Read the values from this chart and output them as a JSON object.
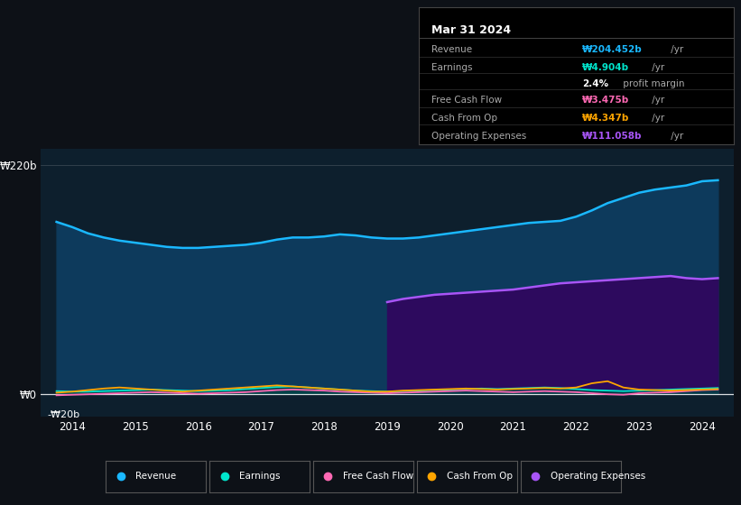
{
  "bg_color": "#0d1117",
  "plot_bg_color": "#0d1f2d",
  "x_years": [
    2013.75,
    2014.0,
    2014.25,
    2014.5,
    2014.75,
    2015.0,
    2015.25,
    2015.5,
    2015.75,
    2016.0,
    2016.25,
    2016.5,
    2016.75,
    2017.0,
    2017.25,
    2017.5,
    2017.75,
    2018.0,
    2018.25,
    2018.5,
    2018.75,
    2019.0,
    2019.25,
    2019.5,
    2019.75,
    2020.0,
    2020.25,
    2020.5,
    2020.75,
    2021.0,
    2021.25,
    2021.5,
    2021.75,
    2022.0,
    2022.25,
    2022.5,
    2022.75,
    2023.0,
    2023.25,
    2023.5,
    2023.75,
    2024.0,
    2024.25
  ],
  "revenue": [
    165,
    160,
    154,
    150,
    147,
    145,
    143,
    141,
    140,
    140,
    141,
    142,
    143,
    145,
    148,
    150,
    150,
    151,
    153,
    152,
    150,
    149,
    149,
    150,
    152,
    154,
    156,
    158,
    160,
    162,
    164,
    165,
    166,
    170,
    176,
    183,
    188,
    193,
    196,
    198,
    200,
    204,
    205
  ],
  "earnings": [
    2.5,
    2.0,
    2.0,
    2.5,
    3.0,
    3.5,
    4.0,
    3.5,
    3.0,
    2.5,
    3.0,
    3.5,
    4.5,
    5.5,
    6.5,
    7.0,
    6.0,
    5.0,
    4.0,
    3.0,
    2.5,
    2.0,
    2.5,
    3.0,
    3.5,
    4.0,
    4.5,
    5.0,
    4.5,
    5.0,
    5.5,
    6.0,
    5.5,
    4.5,
    3.5,
    3.0,
    2.5,
    3.0,
    3.5,
    4.0,
    4.5,
    5.0,
    5.5
  ],
  "free_cash_flow": [
    -1.5,
    -1.0,
    -0.5,
    0.0,
    0.5,
    1.0,
    1.5,
    1.0,
    0.5,
    0.0,
    0.5,
    1.0,
    1.5,
    2.5,
    3.5,
    4.0,
    3.5,
    3.0,
    2.0,
    1.5,
    1.0,
    0.5,
    1.0,
    1.5,
    2.0,
    2.5,
    3.0,
    2.5,
    2.0,
    1.5,
    2.0,
    2.5,
    2.0,
    1.5,
    0.5,
    -0.5,
    -1.0,
    0.5,
    1.0,
    1.5,
    2.5,
    3.5,
    4.0
  ],
  "cash_from_op": [
    1.0,
    2.0,
    3.5,
    5.0,
    6.0,
    5.0,
    4.0,
    3.0,
    2.0,
    3.0,
    4.0,
    5.0,
    6.0,
    7.0,
    8.0,
    7.0,
    6.0,
    5.0,
    4.0,
    3.0,
    2.0,
    2.0,
    3.0,
    3.5,
    4.0,
    4.5,
    5.0,
    4.5,
    4.0,
    4.5,
    5.0,
    5.5,
    5.0,
    6.0,
    10.0,
    12.0,
    6.0,
    4.0,
    3.5,
    3.0,
    3.5,
    4.0,
    4.5
  ],
  "op_expenses_x": [
    2019.0,
    2019.25,
    2019.5,
    2019.75,
    2020.0,
    2020.25,
    2020.5,
    2020.75,
    2021.0,
    2021.25,
    2021.5,
    2021.75,
    2022.0,
    2022.25,
    2022.5,
    2022.75,
    2023.0,
    2023.25,
    2023.5,
    2023.75,
    2024.0,
    2024.25
  ],
  "op_expenses": [
    88,
    91,
    93,
    95,
    96,
    97,
    98,
    99,
    100,
    102,
    104,
    106,
    107,
    108,
    109,
    110,
    111,
    112,
    113,
    111,
    110,
    111
  ],
  "ylim": [
    -22,
    235
  ],
  "xticks": [
    2014,
    2015,
    2016,
    2017,
    2018,
    2019,
    2020,
    2021,
    2022,
    2023,
    2024
  ],
  "revenue_color": "#1ab8ff",
  "earnings_color": "#00e5cc",
  "fcf_color": "#ff69b4",
  "cashop_color": "#ffa500",
  "opex_color": "#a855f7",
  "revenue_fill": "#0d3a5c",
  "opex_fill": "#2d0a5e",
  "earnings_fill": "#004444",
  "legend_items": [
    {
      "label": "Revenue",
      "color": "#1ab8ff"
    },
    {
      "label": "Earnings",
      "color": "#00e5cc"
    },
    {
      "label": "Free Cash Flow",
      "color": "#ff69b4"
    },
    {
      "label": "Cash From Op",
      "color": "#ffa500"
    },
    {
      "label": "Operating Expenses",
      "color": "#a855f7"
    }
  ],
  "tooltip": {
    "date": "Mar 31 2024",
    "rows": [
      {
        "label": "Revenue",
        "value": "₩204.452b",
        "suffix": " /yr",
        "value_color": "#1ab8ff"
      },
      {
        "label": "Earnings",
        "value": "₩4.904b",
        "suffix": " /yr",
        "value_color": "#00e5cc"
      },
      {
        "label": "",
        "value": "2.4%",
        "suffix": " profit margin",
        "value_color": "#ffffff"
      },
      {
        "label": "Free Cash Flow",
        "value": "₩3.475b",
        "suffix": " /yr",
        "value_color": "#ff69b4"
      },
      {
        "label": "Cash From Op",
        "value": "₩4.347b",
        "suffix": " /yr",
        "value_color": "#ffa500"
      },
      {
        "label": "Operating Expenses",
        "value": "₩111.058b",
        "suffix": " /yr",
        "value_color": "#a855f7"
      }
    ]
  }
}
